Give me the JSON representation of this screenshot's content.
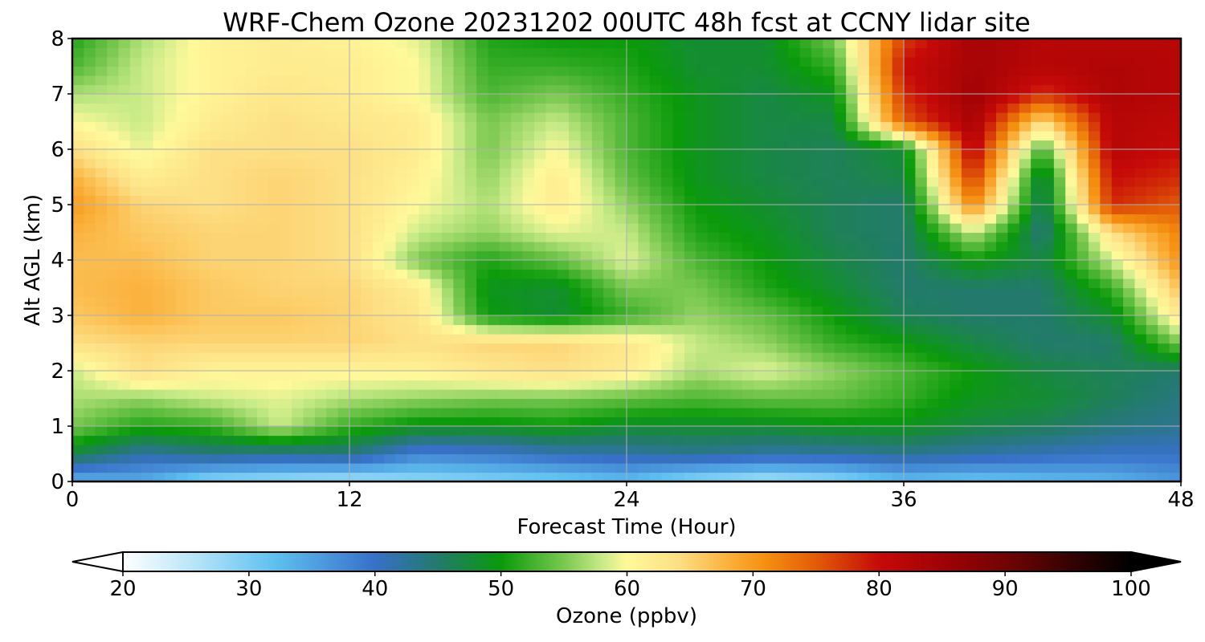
{
  "chart_data": {
    "type": "heatmap",
    "title": "WRF-Chem Ozone  20231202 00UTC 48h fcst at CCNY lidar site",
    "xlabel": "Forecast Time (Hour)",
    "ylabel": "Alt AGL (km)",
    "xlim": [
      0,
      48
    ],
    "ylim": [
      0,
      8
    ],
    "xticks": [
      0,
      12,
      24,
      36,
      48
    ],
    "yticks": [
      0,
      1,
      2,
      3,
      4,
      5,
      6,
      7,
      8
    ],
    "grid": true,
    "colorbar": {
      "label": "Ozone  (ppbv)",
      "min": 20,
      "max": 100,
      "ticks": [
        20,
        30,
        40,
        50,
        60,
        70,
        80,
        90,
        100
      ],
      "extend": "both",
      "stops": [
        {
          "v": 20,
          "c": "#ffffff"
        },
        {
          "v": 26,
          "c": "#b3e3f8"
        },
        {
          "v": 32,
          "c": "#5fc0f0"
        },
        {
          "v": 40,
          "c": "#3870c8"
        },
        {
          "v": 45,
          "c": "#237a6c"
        },
        {
          "v": 50,
          "c": "#0a9a0a"
        },
        {
          "v": 55,
          "c": "#79c84f"
        },
        {
          "v": 58,
          "c": "#c8ea88"
        },
        {
          "v": 60,
          "c": "#fff99a"
        },
        {
          "v": 64,
          "c": "#fde086"
        },
        {
          "v": 68,
          "c": "#fbb13c"
        },
        {
          "v": 71,
          "c": "#f58f0f"
        },
        {
          "v": 75,
          "c": "#e25c08"
        },
        {
          "v": 80,
          "c": "#c60a08"
        },
        {
          "v": 85,
          "c": "#a00205"
        },
        {
          "v": 90,
          "c": "#720404"
        },
        {
          "v": 95,
          "c": "#380202"
        },
        {
          "v": 100,
          "c": "#000000"
        }
      ]
    },
    "x": [
      0,
      3,
      6,
      9,
      12,
      15,
      18,
      21,
      24,
      27,
      30,
      33,
      36,
      39,
      42,
      45,
      48
    ],
    "y": [
      0,
      0.5,
      1,
      1.5,
      2,
      2.5,
      3,
      3.5,
      4,
      4.5,
      5,
      5.5,
      6,
      6.5,
      7,
      7.5,
      8
    ],
    "z": [
      [
        33,
        34,
        28,
        27,
        26,
        28,
        29,
        30,
        32,
        28,
        26,
        28,
        32,
        31,
        32,
        33,
        36
      ],
      [
        47,
        42,
        44,
        43,
        44,
        38,
        39,
        41,
        42,
        43,
        42,
        42,
        43,
        42,
        41,
        40,
        40
      ],
      [
        55,
        51,
        52,
        58,
        52,
        49,
        49,
        50,
        48,
        48,
        48,
        49,
        49,
        47,
        46,
        44,
        43
      ],
      [
        57,
        56,
        58,
        59,
        57,
        56,
        55,
        55,
        54,
        53,
        54,
        54,
        52,
        49,
        48,
        46,
        44
      ],
      [
        58,
        64,
        61,
        61,
        61,
        61,
        63,
        64,
        62,
        57,
        59,
        56,
        53,
        50,
        47,
        46,
        45
      ],
      [
        64,
        65,
        65,
        65,
        65,
        64,
        65,
        65,
        63,
        58,
        56,
        52,
        50,
        47,
        45,
        45,
        55
      ],
      [
        66,
        68,
        66,
        66,
        65,
        63,
        50,
        48,
        52,
        56,
        54,
        50,
        46,
        45,
        45,
        48,
        63
      ],
      [
        67,
        68,
        66,
        65,
        65,
        62,
        49,
        48,
        55,
        55,
        51,
        48,
        45,
        45,
        45,
        52,
        67
      ],
      [
        67,
        67,
        65,
        65,
        64,
        55,
        51,
        54,
        59,
        53,
        50,
        47,
        45,
        50,
        47,
        58,
        71
      ],
      [
        68,
        66,
        65,
        65,
        64,
        58,
        56,
        59,
        58,
        51,
        49,
        46,
        45,
        58,
        44,
        64,
        72
      ],
      [
        70,
        65,
        64,
        65,
        64,
        60,
        57,
        62,
        56,
        50,
        48,
        46,
        45,
        72,
        45,
        78,
        75
      ],
      [
        68,
        62,
        64,
        65,
        64,
        61,
        56,
        62,
        54,
        49,
        47,
        46,
        47,
        78,
        46,
        80,
        78
      ],
      [
        64,
        59,
        64,
        64,
        64,
        62,
        55,
        60,
        53,
        49,
        47,
        46,
        48,
        82,
        52,
        82,
        80
      ],
      [
        60,
        58,
        62,
        64,
        63,
        62,
        55,
        58,
        53,
        49,
        47,
        47,
        75,
        84,
        64,
        82,
        81
      ],
      [
        57,
        58,
        61,
        63,
        62,
        60,
        53,
        55,
        52,
        49,
        47,
        49,
        78,
        85,
        78,
        83,
        82
      ],
      [
        53,
        58,
        61,
        62,
        62,
        60,
        52,
        52,
        51,
        48,
        48,
        52,
        80,
        84,
        82,
        83,
        82
      ],
      [
        51,
        57,
        61,
        62,
        61,
        59,
        51,
        50,
        50,
        48,
        48,
        55,
        77,
        84,
        82,
        82,
        82
      ]
    ]
  }
}
